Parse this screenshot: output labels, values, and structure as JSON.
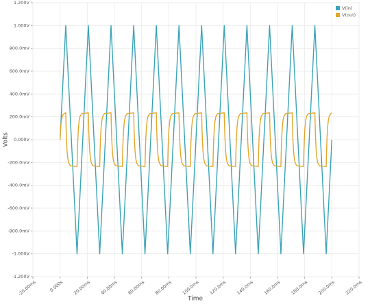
{
  "chart_data": {
    "type": "line",
    "xlabel": "Time",
    "ylabel": "Volts",
    "xlim": [
      -20,
      220
    ],
    "xticks": [
      {
        "value": -20,
        "label": "-20.00ms"
      },
      {
        "value": 0,
        "label": "0.000s"
      },
      {
        "value": 20,
        "label": "20.00ms"
      },
      {
        "value": 40,
        "label": "40.00ms"
      },
      {
        "value": 60,
        "label": "60.00ms"
      },
      {
        "value": 80,
        "label": "80.00ms"
      },
      {
        "value": 100,
        "label": "100.0ms"
      },
      {
        "value": 120,
        "label": "120.0ms"
      },
      {
        "value": 140,
        "label": "140.0ms"
      },
      {
        "value": 160,
        "label": "160.0ms"
      },
      {
        "value": 180,
        "label": "180.0ms"
      },
      {
        "value": 200,
        "label": "200.0ms"
      },
      {
        "value": 220,
        "label": "220.0ms"
      }
    ],
    "ylim": [
      -1.2,
      1.2
    ],
    "yticks": [
      {
        "value": -1.2,
        "label": "-1.200V"
      },
      {
        "value": -1.0,
        "label": "-1.000V"
      },
      {
        "value": -0.8,
        "label": "-800.0mV"
      },
      {
        "value": -0.6,
        "label": "-600.0mV"
      },
      {
        "value": -0.4,
        "label": "-400.0mV"
      },
      {
        "value": -0.2,
        "label": "-200.0mV"
      },
      {
        "value": 0,
        "label": "0.000V"
      },
      {
        "value": 0.2,
        "label": "200.0mV"
      },
      {
        "value": 0.4,
        "label": "400.0mV"
      },
      {
        "value": 0.6,
        "label": "600.0mV"
      },
      {
        "value": 0.8,
        "label": "800.0mV"
      },
      {
        "value": 1.0,
        "label": "1.000V"
      },
      {
        "value": 1.2,
        "label": "1.200V"
      }
    ],
    "grid": true,
    "legend": "upper right",
    "series": [
      {
        "name": "V(in)",
        "color": "#3aa3b7",
        "x": [
          0,
          4.17,
          12.5,
          20.83,
          29.17,
          37.5,
          45.83,
          54.17,
          62.5,
          70.83,
          79.17,
          87.5,
          95.83,
          104.17,
          112.5,
          120.83,
          129.17,
          137.5,
          145.83,
          154.17,
          162.5,
          170.83,
          179.17,
          187.5,
          195.83,
          200
        ],
        "values": [
          0,
          1,
          -1,
          1,
          -1,
          1,
          -1,
          1,
          -1,
          1,
          -1,
          1,
          -1,
          1,
          -1,
          1,
          -1,
          1,
          -1,
          1,
          -1,
          1,
          -1,
          1,
          -1,
          0
        ]
      },
      {
        "name": "V(out)",
        "color": "#e2a62c",
        "x": [
          0,
          0.3,
          0.6,
          1,
          1.5,
          2.2,
          3.5,
          4.17,
          4.47,
          4.77,
          5.17,
          5.67,
          6.37,
          7.67,
          12.5,
          12.8,
          13.1,
          13.5,
          14,
          14.7,
          16,
          20.83,
          21.13,
          21.43,
          21.83,
          22.33,
          23.03,
          24.33,
          29.17,
          29.47,
          29.77,
          30.17,
          30.67,
          31.37,
          32.67,
          37.5,
          37.8,
          38.1,
          38.5,
          39,
          39.7,
          41,
          45.83,
          46.13,
          46.43,
          46.83,
          47.33,
          48.03,
          49.33,
          54.17,
          54.47,
          54.77,
          55.17,
          55.67,
          56.37,
          57.67,
          62.5,
          62.8,
          63.1,
          63.5,
          64,
          64.7,
          66,
          70.83,
          71.13,
          71.43,
          71.83,
          72.33,
          73.03,
          74.33,
          79.17,
          79.47,
          79.77,
          80.17,
          80.67,
          81.37,
          82.67,
          87.5,
          87.8,
          88.1,
          88.5,
          89,
          89.7,
          91,
          95.83,
          96.13,
          96.43,
          96.83,
          97.33,
          98.03,
          99.33,
          104.17,
          104.47,
          104.77,
          105.17,
          105.67,
          106.37,
          107.67,
          112.5,
          112.8,
          113.1,
          113.5,
          114,
          114.7,
          116,
          120.83,
          121.13,
          121.43,
          121.83,
          122.33,
          123.03,
          124.33,
          129.17,
          129.47,
          129.77,
          130.17,
          130.67,
          131.37,
          132.67,
          137.5,
          137.8,
          138.1,
          138.5,
          139,
          139.7,
          141,
          145.83,
          146.13,
          146.43,
          146.83,
          147.33,
          148.03,
          149.33,
          154.17,
          154.47,
          154.77,
          155.17,
          155.67,
          156.37,
          157.67,
          162.5,
          162.8,
          163.1,
          163.5,
          164,
          164.7,
          166,
          170.83,
          171.13,
          171.43,
          171.83,
          172.33,
          173.03,
          174.33,
          179.17,
          179.47,
          179.77,
          180.17,
          180.67,
          181.37,
          182.67,
          187.5,
          187.8,
          188.1,
          188.5,
          189,
          189.7,
          191,
          195.83,
          196.13,
          196.43,
          196.83,
          197.33,
          198.03,
          199.33,
          200
        ],
        "values": [
          0,
          0.073,
          0.124,
          0.168,
          0.199,
          0.22,
          0.232,
          0.235,
          0.088,
          -0.013,
          -0.1,
          -0.163,
          -0.205,
          -0.229,
          -0.235,
          -0.088,
          0.013,
          0.1,
          0.163,
          0.205,
          0.229,
          0.235,
          0.088,
          -0.013,
          -0.1,
          -0.163,
          -0.205,
          -0.229,
          -0.235,
          -0.088,
          0.013,
          0.1,
          0.163,
          0.205,
          0.229,
          0.235,
          0.088,
          -0.013,
          -0.1,
          -0.163,
          -0.205,
          -0.229,
          -0.235,
          -0.088,
          0.013,
          0.1,
          0.163,
          0.205,
          0.229,
          0.235,
          0.088,
          -0.013,
          -0.1,
          -0.163,
          -0.205,
          -0.229,
          -0.235,
          -0.088,
          0.013,
          0.1,
          0.163,
          0.205,
          0.229,
          0.235,
          0.088,
          -0.013,
          -0.1,
          -0.163,
          -0.205,
          -0.229,
          -0.235,
          -0.088,
          0.013,
          0.1,
          0.163,
          0.205,
          0.229,
          0.235,
          0.088,
          -0.013,
          -0.1,
          -0.163,
          -0.205,
          -0.229,
          -0.235,
          -0.088,
          0.013,
          0.1,
          0.163,
          0.205,
          0.229,
          0.235,
          0.088,
          -0.013,
          -0.1,
          -0.163,
          -0.205,
          -0.229,
          -0.235,
          -0.088,
          0.013,
          0.1,
          0.163,
          0.205,
          0.229,
          0.235,
          0.088,
          -0.013,
          -0.1,
          -0.163,
          -0.205,
          -0.229,
          -0.235,
          -0.088,
          0.013,
          0.1,
          0.163,
          0.205,
          0.229,
          0.235,
          0.088,
          -0.013,
          -0.1,
          -0.163,
          -0.205,
          -0.229,
          -0.235,
          -0.088,
          0.013,
          0.1,
          0.163,
          0.205,
          0.229,
          0.235,
          0.088,
          -0.013,
          -0.1,
          -0.163,
          -0.205,
          -0.229,
          -0.235,
          -0.088,
          0.013,
          0.1,
          0.163,
          0.205,
          0.229,
          0.235,
          0.088,
          -0.013,
          -0.1,
          -0.163,
          -0.205,
          -0.229,
          -0.235,
          -0.088,
          0.013,
          0.1,
          0.163,
          0.205,
          0.229,
          0.235,
          0.088,
          -0.013,
          -0.1,
          -0.163,
          -0.205,
          -0.229,
          -0.235,
          -0.088,
          0.013,
          0.1,
          0.163,
          0.205,
          0.229,
          0.235
        ]
      }
    ]
  }
}
